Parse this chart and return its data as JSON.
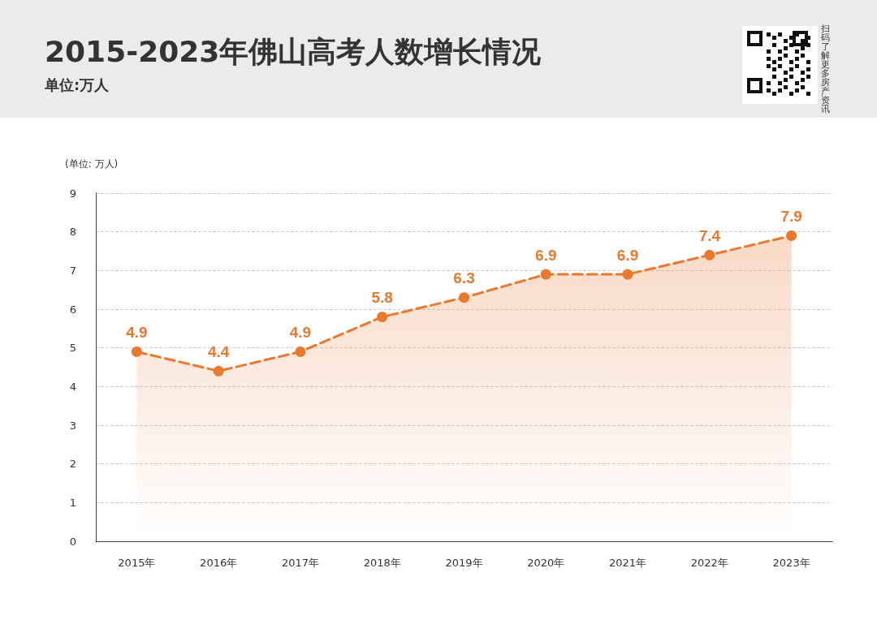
{
  "chart_data": {
    "type": "area",
    "title": "2015-2023年佛山高考人数增长情况",
    "subtitle": "单位:万人",
    "ylabel": "(单位: 万人)",
    "annotations": [
      "扫码了解更多房产资讯"
    ],
    "categories": [
      "2015年",
      "2016年",
      "2017年",
      "2018年",
      "2019年",
      "2020年",
      "2021年",
      "2022年",
      "2023年"
    ],
    "series": [
      {
        "color": "#e8792f",
        "values": [
          4.9,
          4.4,
          4.9,
          5.8,
          6.3,
          6.9,
          6.9,
          7.4,
          7.9
        ]
      }
    ],
    "ylim": [
      0,
      9
    ],
    "yticks": [
      0,
      1,
      2,
      3,
      4,
      5,
      6,
      7,
      8,
      9
    ],
    "grid": "y",
    "marker": "circle",
    "line_style": "dashed",
    "data_labels": true
  }
}
